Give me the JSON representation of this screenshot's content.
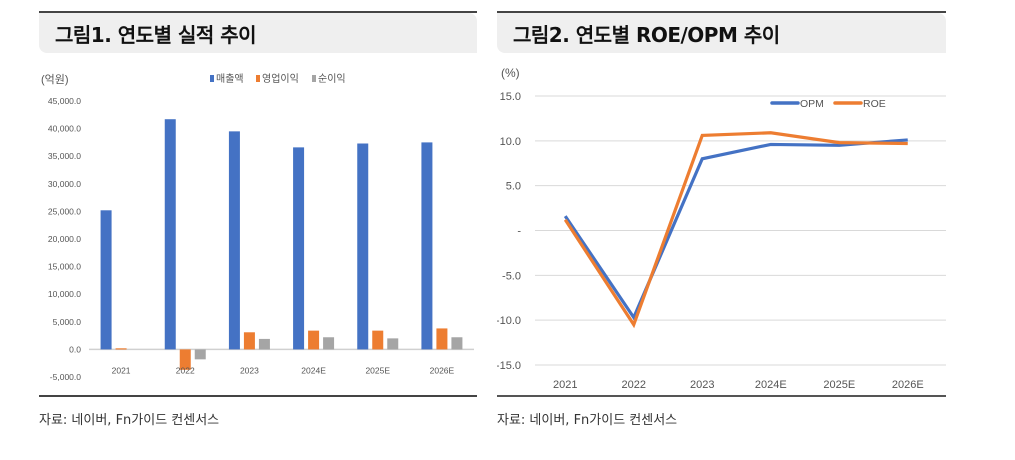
{
  "figure1": {
    "title": "그림1. 연도별 실적 추이",
    "unit_label": "(억원)",
    "source": "자료: 네이버, Fn가이드 컨센서스"
  },
  "figure2": {
    "title": "그림2. 연도별 ROE/OPM 추이",
    "unit_label": "(%)",
    "source": "자료: 네이버, Fn가이드 컨센서스"
  },
  "chart_data": [
    {
      "type": "bar",
      "title": "그림1. 연도별 실적 추이",
      "ylabel": "(억원)",
      "xlabel": "",
      "categories": [
        "2021",
        "2022",
        "2023",
        "2024E",
        "2025E",
        "2026E"
      ],
      "series": [
        {
          "name": "매출액",
          "color": "#4472C4",
          "values": [
            25200,
            41700,
            39500,
            36600,
            37300,
            37500
          ]
        },
        {
          "name": "영업이익",
          "color": "#ED7D31",
          "values": [
            200,
            -3700,
            3100,
            3400,
            3400,
            3800
          ]
        },
        {
          "name": "순이익",
          "color": "#A5A5A5",
          "values": [
            0,
            -1800,
            1900,
            2200,
            2000,
            2200
          ]
        }
      ],
      "ylim": [
        -5000,
        45000
      ],
      "yticks": [
        "-5,000.0",
        "0.0",
        "5,000.0",
        "10,000.0",
        "15,000.0",
        "20,000.0",
        "25,000.0",
        "30,000.0",
        "35,000.0",
        "40,000.0",
        "45,000.0"
      ],
      "grid": false,
      "legend_position": "top"
    },
    {
      "type": "line",
      "title": "그림2. 연도별 ROE/OPM 추이",
      "ylabel": "(%)",
      "xlabel": "",
      "categories": [
        "2021",
        "2022",
        "2023",
        "2024E",
        "2025E",
        "2026E"
      ],
      "series": [
        {
          "name": "OPM",
          "color": "#4472C4",
          "values": [
            1.6,
            -9.7,
            8.0,
            9.6,
            9.5,
            10.1
          ]
        },
        {
          "name": "ROE",
          "color": "#ED7D31",
          "values": [
            1.2,
            -10.5,
            10.6,
            10.9,
            9.8,
            9.7
          ]
        }
      ],
      "ylim": [
        -15,
        15
      ],
      "yticks": [
        "-15.0",
        "-10.0",
        "-5.0",
        "-",
        "5.0",
        "10.0",
        "15.0"
      ],
      "grid": true,
      "legend_position": "top-right"
    }
  ]
}
